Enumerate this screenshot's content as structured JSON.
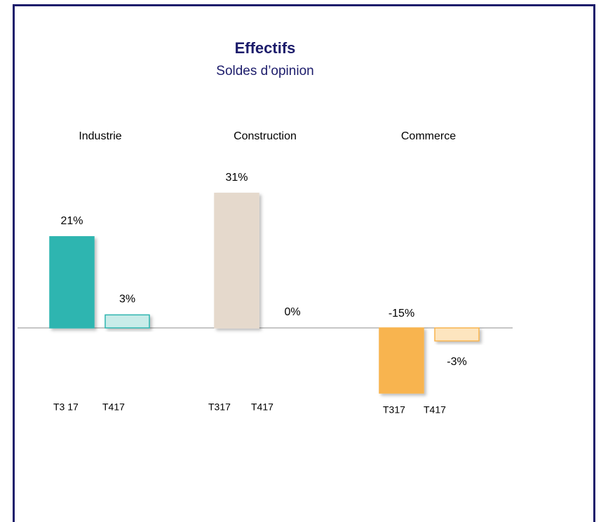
{
  "chart_data": {
    "type": "bar",
    "title": "Effectifs",
    "subtitle": "Soldes d’opinion",
    "groups": [
      {
        "name": "Industrie",
        "categories": [
          "T3 17",
          "T417"
        ],
        "values": [
          21,
          3
        ],
        "value_labels": [
          "21%",
          "3%"
        ],
        "colors": [
          "#2fb5b0",
          "#c9ece9"
        ],
        "edge_colors": [
          "#2fb5b0",
          "#2fb5b0"
        ]
      },
      {
        "name": "Construction",
        "categories": [
          "T317",
          "T417"
        ],
        "values": [
          31,
          0
        ],
        "value_labels": [
          "31%",
          "0%"
        ],
        "colors": [
          "#e5d9cc",
          "#e5d9cc"
        ],
        "edge_colors": [
          "#e5d9cc",
          "#e5d9cc"
        ]
      },
      {
        "name": "Commerce",
        "categories": [
          "T317",
          "T417"
        ],
        "values": [
          -15,
          -3
        ],
        "value_labels": [
          "-15%",
          "-3%"
        ],
        "colors": [
          "#f8b44f",
          "#fde5bf"
        ],
        "edge_colors": [
          "#f8b44f",
          "#f8b44f"
        ]
      }
    ]
  }
}
